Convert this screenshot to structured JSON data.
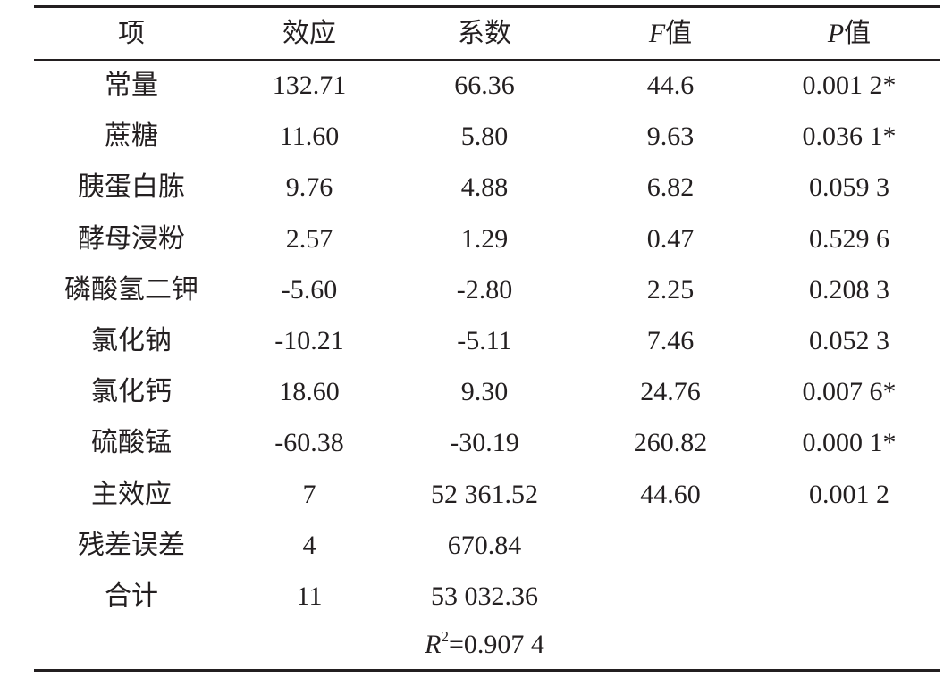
{
  "table": {
    "header": [
      {
        "text": "项"
      },
      {
        "text": "效应"
      },
      {
        "text": "系数"
      },
      {
        "italic": "F",
        "text": "值"
      },
      {
        "italic": "P",
        "text": "值"
      }
    ],
    "rows": [
      [
        "常量",
        "132.71",
        "66.36",
        "44.6",
        "0.001 2*"
      ],
      [
        "蔗糖",
        "11.60",
        "5.80",
        "9.63",
        "0.036 1*"
      ],
      [
        "胰蛋白胨",
        "9.76",
        "4.88",
        "6.82",
        "0.059 3"
      ],
      [
        "酵母浸粉",
        "2.57",
        "1.29",
        "0.47",
        "0.529 6"
      ],
      [
        "磷酸氢二钾",
        "-5.60",
        "-2.80",
        "2.25",
        "0.208 3"
      ],
      [
        "氯化钠",
        "-10.21",
        "-5.11",
        "7.46",
        "0.052 3"
      ],
      [
        "氯化钙",
        "18.60",
        "9.30",
        "24.76",
        "0.007 6*"
      ],
      [
        "硫酸锰",
        "-60.38",
        "-30.19",
        "260.82",
        "0.000 1*"
      ],
      [
        "主效应",
        "7",
        "52 361.52",
        "44.60",
        "0.001 2"
      ],
      [
        "残差误差",
        "4",
        "670.84"
      ],
      [
        "合计",
        "11",
        "53 032.36"
      ]
    ],
    "footer": {
      "italic": "R",
      "sup": "2",
      "text": "=0.907 4"
    }
  }
}
